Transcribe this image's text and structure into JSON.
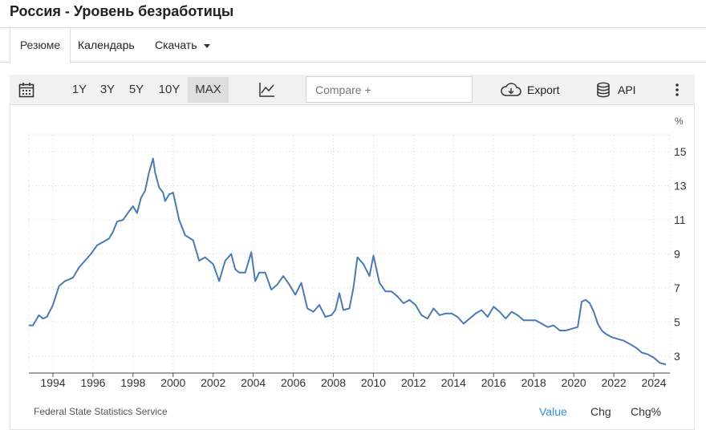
{
  "page": {
    "title": "Россия - Уровень безработицы"
  },
  "tabs": [
    {
      "label": "Резюме",
      "active": true
    },
    {
      "label": "Календарь",
      "active": false
    },
    {
      "label": "Скачать",
      "active": false
    }
  ],
  "toolbar": {
    "calendar_icon": "calendar-icon",
    "ranges": [
      {
        "label": "1Y",
        "active": false
      },
      {
        "label": "3Y",
        "active": false
      },
      {
        "label": "5Y",
        "active": false
      },
      {
        "label": "10Y",
        "active": false
      },
      {
        "label": "MAX",
        "active": true
      }
    ],
    "chart_type_icon": "line-chart-icon",
    "compare_placeholder": "Compare +",
    "export_label": "Export",
    "export_icon": "cloud-download-icon",
    "api_label": "API",
    "api_icon": "database-icon",
    "more_icon": "more-vertical-icon"
  },
  "footer": {
    "source": "Federal State Statistics Service",
    "views": [
      {
        "label": "Value",
        "active": true
      },
      {
        "label": "Chg",
        "active": false
      },
      {
        "label": "Chg%",
        "active": false
      }
    ]
  },
  "colors": {
    "line": "#4a7ab4",
    "active_view": "#2f8ed8",
    "grid": "#e6e6e6"
  },
  "chart_data": {
    "type": "line",
    "title": "",
    "xlabel": "",
    "ylabel": "%",
    "grid": true,
    "x_range": [
      1992.8,
      2024.8
    ],
    "ylim": [
      2.0,
      16.0
    ],
    "x_ticks": [
      1994,
      1996,
      1998,
      2000,
      2002,
      2004,
      2006,
      2008,
      2010,
      2012,
      2014,
      2016,
      2018,
      2020,
      2022,
      2024
    ],
    "y_ticks": [
      3,
      5,
      7,
      9,
      11,
      13,
      15
    ],
    "series": [
      {
        "name": "",
        "x": [
          1992.8,
          1993.0,
          1993.3,
          1993.5,
          1993.7,
          1994.0,
          1994.3,
          1994.6,
          1995.0,
          1995.3,
          1995.6,
          1995.9,
          1996.2,
          1996.5,
          1996.8,
          1997.0,
          1997.2,
          1997.5,
          1997.8,
          1998.0,
          1998.2,
          1998.4,
          1998.6,
          1998.8,
          1999.0,
          1999.1,
          1999.3,
          1999.5,
          1999.6,
          1999.8,
          2000.0,
          2000.3,
          2000.6,
          2001.0,
          2001.3,
          2001.6,
          2002.0,
          2002.3,
          2002.6,
          2002.9,
          2003.1,
          2003.3,
          2003.6,
          2003.9,
          2004.1,
          2004.3,
          2004.6,
          2004.9,
          2005.2,
          2005.5,
          2005.8,
          2006.1,
          2006.4,
          2006.7,
          2007.0,
          2007.3,
          2007.6,
          2007.9,
          2008.1,
          2008.3,
          2008.5,
          2008.8,
          2009.0,
          2009.2,
          2009.5,
          2009.8,
          2010.0,
          2010.3,
          2010.6,
          2010.9,
          2011.2,
          2011.5,
          2011.8,
          2012.1,
          2012.4,
          2012.7,
          2013.0,
          2013.3,
          2013.6,
          2013.9,
          2014.2,
          2014.5,
          2014.8,
          2015.1,
          2015.4,
          2015.7,
          2016.0,
          2016.3,
          2016.6,
          2016.9,
          2017.2,
          2017.5,
          2017.8,
          2018.1,
          2018.4,
          2018.7,
          2019.0,
          2019.3,
          2019.6,
          2019.9,
          2020.2,
          2020.4,
          2020.6,
          2020.8,
          2021.0,
          2021.2,
          2021.4,
          2021.6,
          2021.9,
          2022.2,
          2022.5,
          2022.8,
          2023.1,
          2023.4,
          2023.7,
          2024.0,
          2024.3,
          2024.6
        ],
        "values": [
          4.8,
          4.8,
          5.4,
          5.2,
          5.3,
          6.0,
          7.1,
          7.4,
          7.6,
          8.2,
          8.6,
          9.0,
          9.5,
          9.7,
          9.9,
          10.3,
          10.9,
          11.0,
          11.5,
          11.8,
          11.4,
          12.3,
          12.7,
          13.8,
          14.6,
          13.8,
          12.9,
          12.6,
          12.1,
          12.5,
          12.6,
          11.0,
          10.1,
          9.8,
          8.6,
          8.8,
          8.4,
          7.4,
          8.6,
          9.0,
          8.1,
          7.9,
          7.9,
          9.1,
          7.4,
          7.9,
          7.9,
          6.9,
          7.2,
          7.7,
          7.2,
          6.6,
          7.3,
          5.8,
          5.6,
          6.0,
          5.3,
          5.4,
          5.7,
          6.7,
          5.7,
          5.8,
          7.0,
          8.8,
          8.4,
          7.7,
          8.9,
          7.3,
          6.8,
          6.8,
          6.5,
          6.1,
          6.3,
          6.0,
          5.4,
          5.2,
          5.8,
          5.4,
          5.5,
          5.5,
          5.3,
          4.9,
          5.2,
          5.5,
          5.7,
          5.3,
          5.9,
          5.6,
          5.2,
          5.6,
          5.4,
          5.1,
          5.1,
          5.1,
          4.9,
          4.7,
          4.8,
          4.5,
          4.5,
          4.6,
          4.7,
          6.2,
          6.3,
          6.1,
          5.6,
          4.9,
          4.5,
          4.3,
          4.1,
          4.0,
          3.9,
          3.7,
          3.5,
          3.2,
          3.1,
          2.9,
          2.6,
          2.5
        ]
      }
    ]
  }
}
